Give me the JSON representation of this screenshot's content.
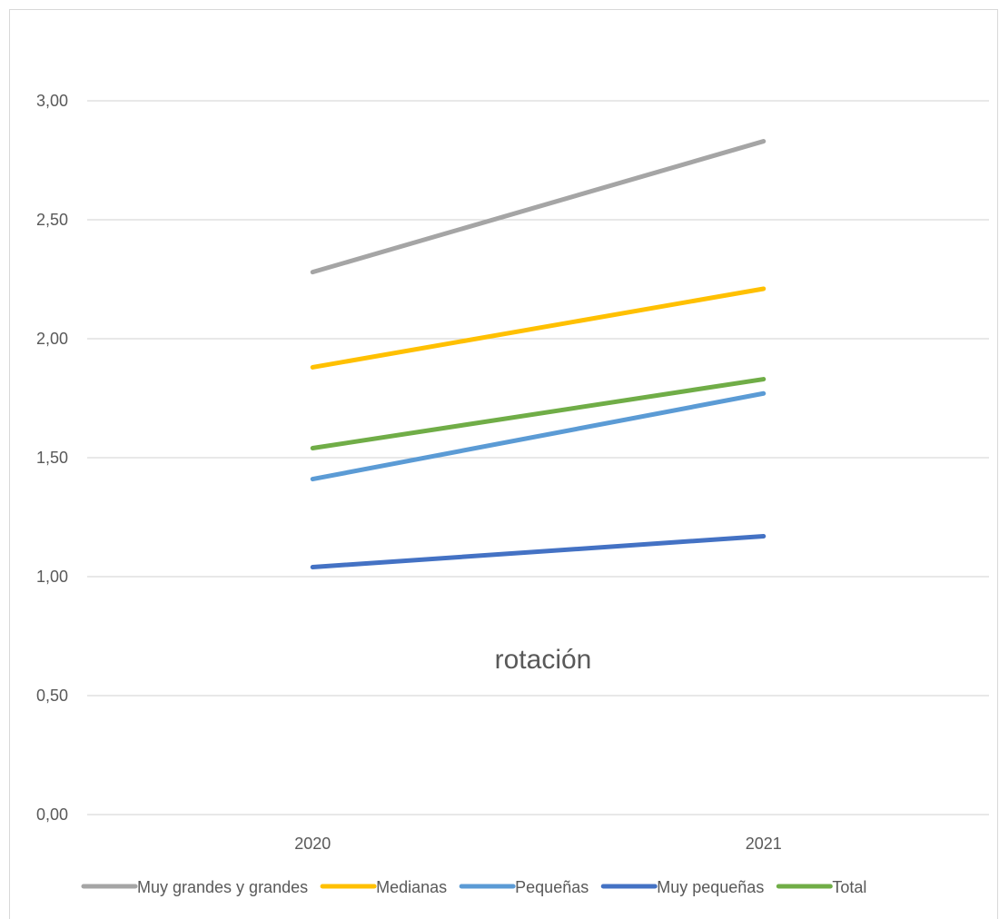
{
  "chart_data": {
    "type": "line",
    "title": "rotación",
    "categories": [
      "2020",
      "2021"
    ],
    "y_ticks": [
      "0,00",
      "0,50",
      "1,00",
      "1,50",
      "2,00",
      "2,50",
      "3,00"
    ],
    "ylim": [
      0,
      3.3
    ],
    "grid": true,
    "legend_position": "bottom",
    "series": [
      {
        "name": "Muy grandes y grandes",
        "color": "#a5a5a5",
        "values": [
          2.28,
          2.83
        ]
      },
      {
        "name": "Medianas",
        "color": "#ffc000",
        "values": [
          1.88,
          2.21
        ]
      },
      {
        "name": "Pequeñas",
        "color": "#5b9bd5",
        "values": [
          1.41,
          1.77
        ]
      },
      {
        "name": "Muy pequeñas",
        "color": "#4472c4",
        "values": [
          1.04,
          1.17
        ]
      },
      {
        "name": "Total",
        "color": "#70ad47",
        "values": [
          1.54,
          1.83
        ]
      }
    ]
  }
}
